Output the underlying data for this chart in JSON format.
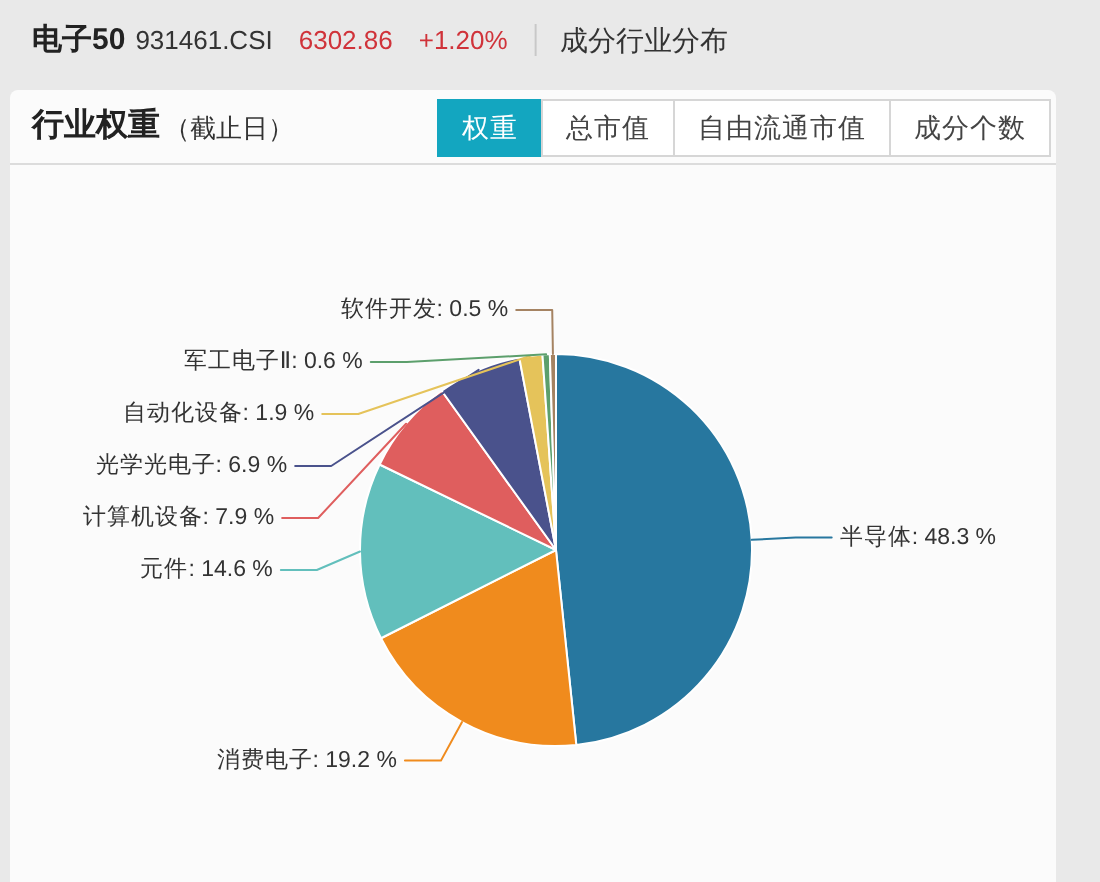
{
  "chart_data": {
    "type": "pie",
    "title": "行业权重",
    "subtitle": "（截止日）",
    "categories": [
      "半导体",
      "消费电子",
      "元件",
      "计算机设备",
      "光学光电子",
      "自动化设备",
      "军工电子Ⅱ",
      "软件开发"
    ],
    "values": [
      48.3,
      19.2,
      14.6,
      7.9,
      6.9,
      1.9,
      0.6,
      0.5
    ],
    "value_labels": [
      "48.3 %",
      "19.2 %",
      "14.6 %",
      "7.9 %",
      "6.9 %",
      "1.9 %",
      "0.6 %",
      "0.5 %"
    ],
    "colors": [
      "#27779f",
      "#f08b1d",
      "#62bfbc",
      "#df5e5e",
      "#4a528c",
      "#e5c35a",
      "#5c9f6c",
      "#a58362"
    ],
    "annotations": [
      "电子50",
      "931461.CSI",
      "6302.86",
      "+1.20%",
      "成分行业分布",
      "权重",
      "总市值",
      "自由流通市值",
      "成分个数"
    ]
  }
}
